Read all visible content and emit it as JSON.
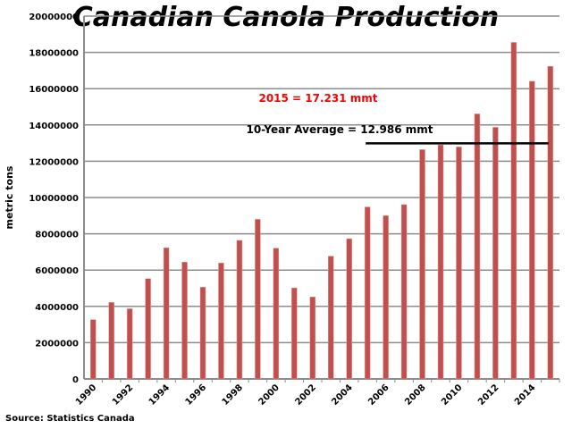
{
  "chart_data": {
    "type": "bar",
    "title": "Canadian Canola Production",
    "xlabel": "",
    "ylabel": "metric tons",
    "ylim": [
      0,
      20000000
    ],
    "yticks": [
      "0",
      "2000000",
      "4000000",
      "6000000",
      "8000000",
      "10000000",
      "12000000",
      "14000000",
      "16000000",
      "18000000",
      "20000000"
    ],
    "grid": true,
    "categories": [
      "1990",
      "1991",
      "1992",
      "1993",
      "1994",
      "1995",
      "1996",
      "1997",
      "1998",
      "1999",
      "2000",
      "2001",
      "2002",
      "2003",
      "2004",
      "2005",
      "2006",
      "2007",
      "2008",
      "2009",
      "2010",
      "2011",
      "2012",
      "2013",
      "2014",
      "2015"
    ],
    "xtick_labels": [
      "1990",
      "1992",
      "1994",
      "1996",
      "1998",
      "2000",
      "2002",
      "2004",
      "2006",
      "2008",
      "2010",
      "2012",
      "2014"
    ],
    "values": [
      3270000,
      4220000,
      3870000,
      5530000,
      7230000,
      6440000,
      5060000,
      6390000,
      7640000,
      8800000,
      7210000,
      5020000,
      4520000,
      6770000,
      7730000,
      9480000,
      9000000,
      9610000,
      12640000,
      12900000,
      12790000,
      14610000,
      13870000,
      18550000,
      16410000,
      17231000
    ],
    "bar_color": "#c0504d",
    "average": {
      "value": 12986000,
      "from": "2005",
      "to": "2015",
      "label": "10-Year Average = 12.986 mmt"
    },
    "annotation": {
      "text": "2015 = 17.231 mmt",
      "color": "#ff0000"
    },
    "source": "Source: Statistics Canada"
  }
}
